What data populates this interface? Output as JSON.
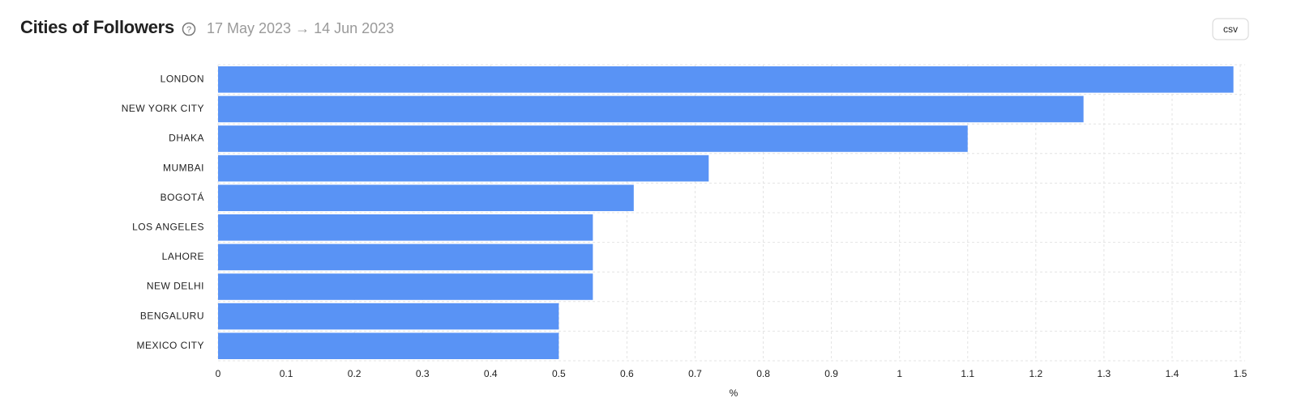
{
  "header": {
    "title": "Cities of Followers",
    "date_range": "17 May 2023 → 14 Jun 2023",
    "button": "csv"
  },
  "chart_data": {
    "type": "bar",
    "orientation": "horizontal",
    "x_label": "%",
    "categories": [
      "LONDON",
      "NEW YORK CITY",
      "DHAKA",
      "MUMBAI",
      "BOGOTÁ",
      "LOS ANGELES",
      "LAHORE",
      "NEW DELHI",
      "BENGALURU",
      "MEXICO CITY"
    ],
    "values": [
      1.49,
      1.27,
      1.1,
      0.72,
      0.61,
      0.55,
      0.55,
      0.55,
      0.5,
      0.5
    ],
    "color": "#5993f5",
    "xlim": [
      0,
      1.5
    ],
    "xticks": [
      0,
      0.1,
      0.2,
      0.3,
      0.4,
      0.5,
      0.6,
      0.7,
      0.8,
      0.9,
      1,
      1.1,
      1.2,
      1.3,
      1.4,
      1.5
    ],
    "grid": true
  }
}
